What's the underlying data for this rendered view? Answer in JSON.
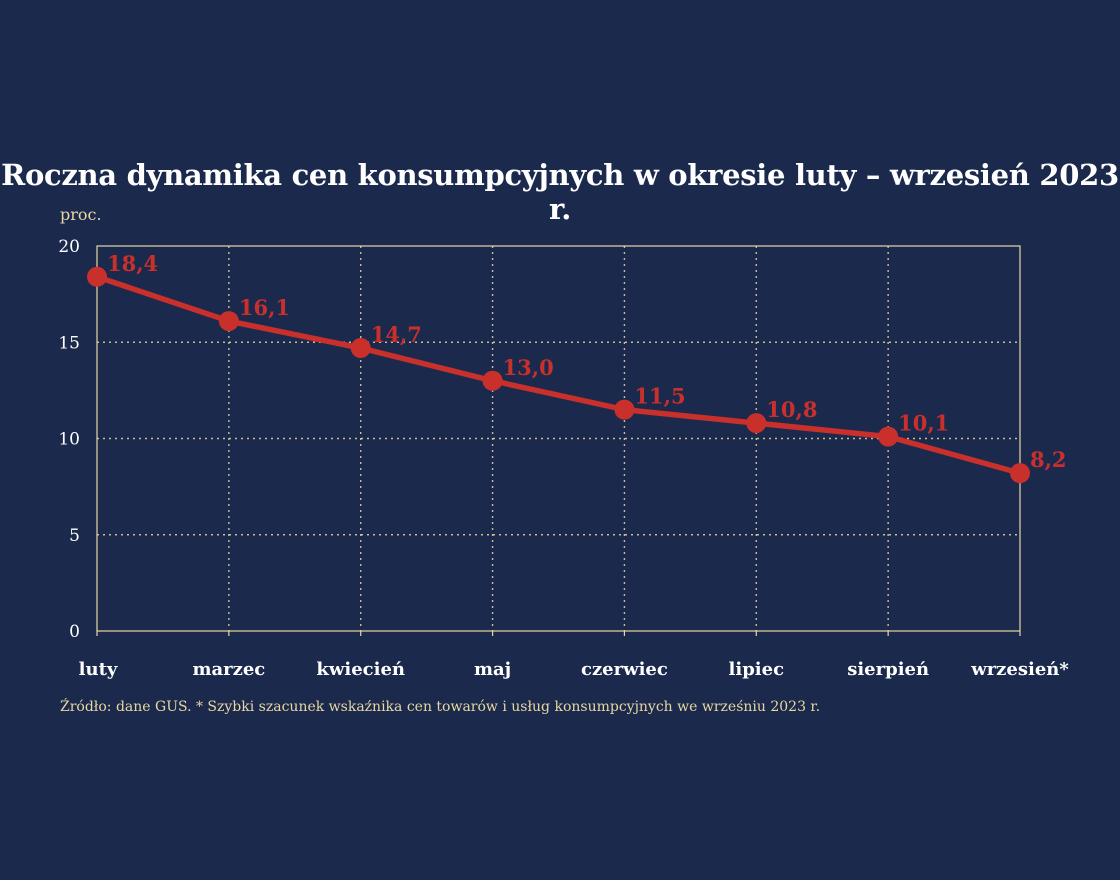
{
  "chart_data": {
    "type": "line",
    "title": "Roczna dynamika cen konsumpcyjnych w okresie luty – wrzesień 2023 r.",
    "ylabel": "proc.",
    "xlabel": "",
    "categories": [
      "luty",
      "marzec",
      "kwiecień",
      "maj",
      "czerwiec",
      "lipiec",
      "sierpień",
      "wrzesień*"
    ],
    "series": [
      {
        "values": [
          18.4,
          16.1,
          14.7,
          13.0,
          11.5,
          10.8,
          10.1,
          8.2
        ],
        "labels": [
          "18,4",
          "16,1",
          "14,7",
          "13,0",
          "11,5",
          "10,8",
          "10,1",
          "8,2"
        ],
        "color": "#c9302c"
      }
    ],
    "ylim": [
      0,
      20
    ],
    "yticks": [
      0,
      5,
      10,
      15,
      20
    ],
    "grid": true,
    "footnote": "Źródło: dane GUS. * Szybki szacunek wskaźnika cen towarów i usług konsumpcyjnych we wrześniu 2023 r."
  },
  "colors": {
    "background": "#1b2a4c",
    "axis": "#e8d6a3",
    "grid": "#e8d6a3",
    "line": "#c9302c",
    "text": "#ffffff"
  }
}
